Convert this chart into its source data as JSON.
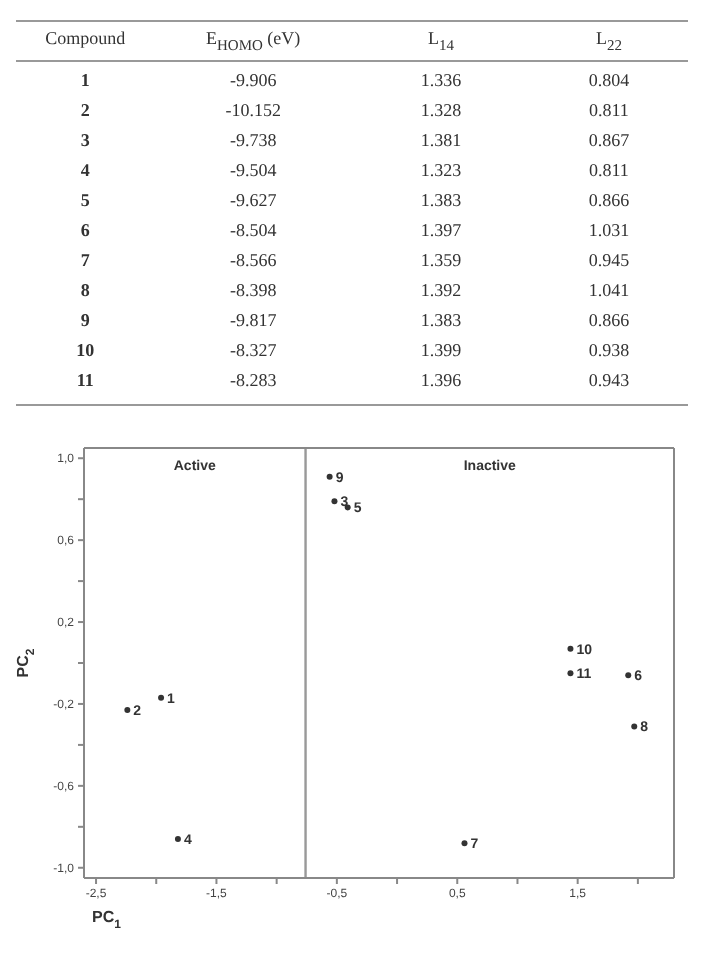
{
  "chart_data": [
    {
      "type": "heatmap",
      "ylabel": "Compound",
      "categories": [
        "E$_{HOMO}$ (eV)",
        "L$_{14}$",
        "L$_{22}$"
      ],
      "y_categories": [
        "1",
        "2",
        "3",
        "4",
        "5",
        "6",
        "7",
        "8",
        "9",
        "10",
        "11"
      ],
      "cells": [
        [
          -9.906,
          1.336,
          0.804
        ],
        [
          -10.152,
          1.328,
          0.811
        ],
        [
          -9.738,
          1.381,
          0.867
        ],
        [
          -9.504,
          1.323,
          0.811
        ],
        [
          -9.627,
          1.383,
          0.866
        ],
        [
          -8.504,
          1.397,
          1.031
        ],
        [
          -8.566,
          1.359,
          0.945
        ],
        [
          -8.398,
          1.392,
          1.041
        ],
        [
          -9.817,
          1.383,
          0.866
        ],
        [
          -8.327,
          1.399,
          0.938
        ],
        [
          -8.283,
          1.396,
          0.943
        ]
      ],
      "data_labels": true
    },
    {
      "type": "scatter",
      "xlabel": "PC$_{1}$",
      "ylabel": "PC$_{2}$",
      "series": [
        {
          "color": "#333333",
          "x": [
            -1.96,
            -2.24,
            -0.52,
            -1.82,
            -0.41,
            1.92,
            0.56,
            1.97,
            -0.56,
            1.44,
            1.44
          ],
          "values": [
            -0.17,
            -0.23,
            0.79,
            -0.86,
            0.76,
            -0.06,
            -0.88,
            -0.31,
            0.91,
            0.07,
            -0.05
          ]
        }
      ],
      "marker": "circle",
      "xlim": [
        -2.6,
        2.3
      ],
      "xticks": [
        {
          "value": -2.5,
          "label": "-2,5"
        },
        {
          "value": -2.0,
          "label": null
        },
        {
          "value": -1.5,
          "label": "-1,5"
        },
        {
          "value": -1.0,
          "label": null
        },
        {
          "value": -0.5,
          "label": "-0,5"
        },
        {
          "value": 0.0,
          "label": null
        },
        {
          "value": 0.5,
          "label": "0,5"
        },
        {
          "value": 1.0,
          "label": null
        },
        {
          "value": 1.5,
          "label": "1,5"
        },
        {
          "value": 2.0,
          "label": null
        }
      ],
      "ylim": [
        -1.05,
        1.05
      ],
      "yticks": [
        {
          "value": -1.0,
          "label": "-1,0"
        },
        {
          "value": -0.8,
          "label": null
        },
        {
          "value": -0.6,
          "label": "-0,6"
        },
        {
          "value": -0.4,
          "label": null
        },
        {
          "value": -0.2,
          "label": "-0,2"
        },
        {
          "value": 0.0,
          "label": null
        },
        {
          "value": 0.2,
          "label": "0,2"
        },
        {
          "value": 0.4,
          "label": null
        },
        {
          "value": 0.6,
          "label": "0,6"
        },
        {
          "value": 0.8,
          "label": null
        },
        {
          "value": 1.0,
          "label": "1,0"
        }
      ],
      "ref_lines": [
        {
          "axis": "x",
          "value": -0.76,
          "color": "#999999"
        }
      ],
      "annotations": [
        "Active",
        "Inactive",
        {
          "text": "1",
          "x": -1.96,
          "y": -0.17
        },
        {
          "text": "2",
          "x": -2.24,
          "y": -0.23
        },
        {
          "text": "3",
          "x": -0.52,
          "y": 0.79
        },
        {
          "text": "4",
          "x": -1.82,
          "y": -0.86
        },
        {
          "text": "5",
          "x": -0.41,
          "y": 0.76
        },
        {
          "text": "6",
          "x": 1.92,
          "y": -0.06
        },
        {
          "text": "7",
          "x": 0.56,
          "y": -0.88
        },
        {
          "text": "8",
          "x": 1.97,
          "y": -0.31
        },
        {
          "text": "9",
          "x": -0.56,
          "y": 0.91
        },
        {
          "text": "10",
          "x": 1.44,
          "y": 0.07
        },
        {
          "text": "11",
          "x": 1.44,
          "y": -0.05
        }
      ]
    }
  ]
}
